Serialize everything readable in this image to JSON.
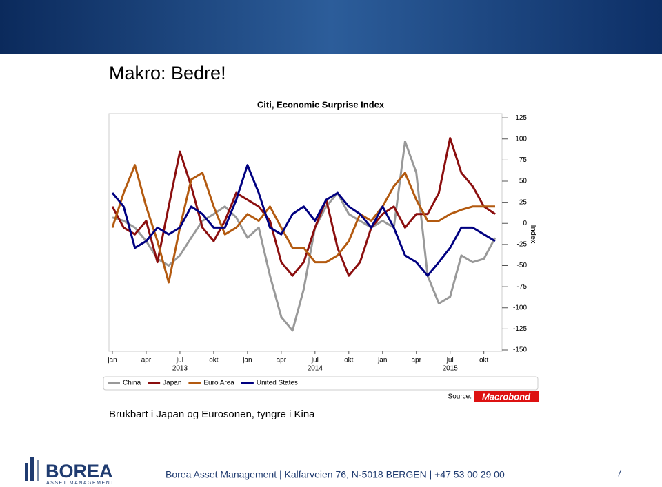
{
  "slide": {
    "title": "Makro: Bedre!",
    "subtitle": "Brukbart i Japan og Eurosonen, tyngre i Kina",
    "logo": {
      "name": "BOREA",
      "tagline": "ASSET MANAGEMENT"
    },
    "footer": "Borea Asset Management | Kalfarveien 76, N-5018 BERGEN | +47 53 00 29 00",
    "page_number": 7
  },
  "chart_data": {
    "type": "line",
    "title": "Citi, Economic Surprise Index",
    "y_label": "Index",
    "source_label": "Source:",
    "source": "Macrobond",
    "x": [
      "2013-01",
      "2013-02",
      "2013-03",
      "2013-04",
      "2013-05",
      "2013-06",
      "2013-07",
      "2013-08",
      "2013-09",
      "2013-10",
      "2013-11",
      "2013-12",
      "2014-01",
      "2014-02",
      "2014-03",
      "2014-04",
      "2014-05",
      "2014-06",
      "2014-07",
      "2014-08",
      "2014-09",
      "2014-10",
      "2014-11",
      "2014-12",
      "2015-01",
      "2015-02",
      "2015-03",
      "2015-04",
      "2015-05",
      "2015-06",
      "2015-07",
      "2015-08",
      "2015-09",
      "2015-10",
      "2015-11"
    ],
    "xticks": [
      {
        "value": "2013-01",
        "label": "jan"
      },
      {
        "value": "2013-04",
        "label": "apr"
      },
      {
        "value": "2013-07",
        "label": "jul"
      },
      {
        "value": "2013-10",
        "label": "okt"
      },
      {
        "value": "2014-01",
        "label": "jan"
      },
      {
        "value": "2014-04",
        "label": "apr"
      },
      {
        "value": "2014-07",
        "label": "jul"
      },
      {
        "value": "2014-10",
        "label": "okt"
      },
      {
        "value": "2015-01",
        "label": "jan"
      },
      {
        "value": "2015-04",
        "label": "apr"
      },
      {
        "value": "2015-07",
        "label": "jul"
      },
      {
        "value": "2015-10",
        "label": "okt"
      }
    ],
    "year_labels": [
      {
        "value": "2013-07",
        "label": "2013"
      },
      {
        "value": "2014-07",
        "label": "2014"
      },
      {
        "value": "2015-07",
        "label": "2015"
      }
    ],
    "ylim": [
      -150,
      130
    ],
    "yticks": [
      125,
      100,
      75,
      50,
      25,
      0,
      -25,
      -50,
      -75,
      -100,
      -125,
      -150
    ],
    "y_axis_side": "right",
    "grid": false,
    "series": [
      {
        "name": "China",
        "color": "#999999",
        "values": [
          7,
          3,
          -5,
          -21,
          -42,
          -50,
          -38,
          -17,
          3,
          11,
          20,
          7,
          -17,
          -5,
          -62,
          -111,
          -127,
          -78,
          -5,
          20,
          36,
          11,
          3,
          -5,
          3,
          -5,
          97,
          60,
          -62,
          -95,
          -87,
          -38,
          -46,
          -42,
          -17
        ]
      },
      {
        "name": "Japan",
        "color": "#8b0e0e",
        "values": [
          20,
          -5,
          -13,
          3,
          -46,
          20,
          85,
          44,
          -5,
          -21,
          3,
          36,
          28,
          20,
          3,
          -46,
          -62,
          -46,
          -5,
          28,
          -29,
          -62,
          -46,
          -5,
          11,
          20,
          -5,
          11,
          11,
          36,
          101,
          60,
          44,
          20,
          11
        ]
      },
      {
        "name": "Euro Area",
        "color": "#b35a10",
        "values": [
          -5,
          36,
          69,
          20,
          -21,
          -70,
          -5,
          52,
          60,
          20,
          -13,
          -5,
          11,
          3,
          20,
          -5,
          -29,
          -29,
          -46,
          -46,
          -38,
          -21,
          11,
          3,
          20,
          44,
          60,
          28,
          3,
          3,
          11,
          16,
          20,
          20,
          20
        ]
      },
      {
        "name": "United States",
        "color": "#000080",
        "values": [
          36,
          20,
          -29,
          -21,
          -5,
          -13,
          -5,
          20,
          11,
          -5,
          -5,
          28,
          69,
          36,
          -5,
          -13,
          11,
          20,
          3,
          28,
          36,
          20,
          11,
          -5,
          20,
          -5,
          -38,
          -46,
          -62,
          -46,
          -29,
          -5,
          -5,
          -13,
          -21
        ]
      }
    ]
  }
}
